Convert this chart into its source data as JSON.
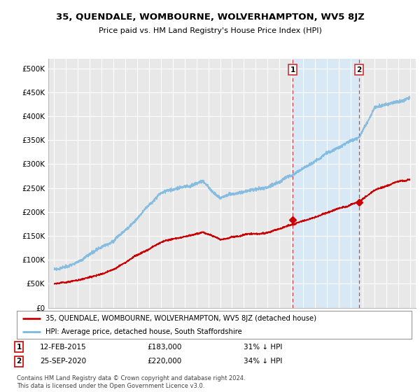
{
  "title": "35, QUENDALE, WOMBOURNE, WOLVERHAMPTON, WV5 8JZ",
  "subtitle": "Price paid vs. HM Land Registry's House Price Index (HPI)",
  "footer": "Contains HM Land Registry data © Crown copyright and database right 2024.\nThis data is licensed under the Open Government Licence v3.0.",
  "legend_line1": "35, QUENDALE, WOMBOURNE, WOLVERHAMPTON, WV5 8JZ (detached house)",
  "legend_line2": "HPI: Average price, detached house, South Staffordshire",
  "sale1_label": "1",
  "sale1_date": "12-FEB-2015",
  "sale1_price": "£183,000",
  "sale1_note": "31% ↓ HPI",
  "sale2_label": "2",
  "sale2_date": "25-SEP-2020",
  "sale2_price": "£220,000",
  "sale2_note": "34% ↓ HPI",
  "sale1_x": 2015.11,
  "sale1_y": 183000,
  "sale2_x": 2020.73,
  "sale2_y": 220000,
  "hpi_color": "#7ab8e0",
  "price_color": "#cc0000",
  "bg_color": "#ffffff",
  "plot_bg_color": "#e8e8e8",
  "highlight_bg": "#d8e8f5",
  "grid_color": "#ffffff",
  "ylim": [
    0,
    520000
  ],
  "xlim": [
    1994.5,
    2025.5
  ],
  "yticks": [
    0,
    50000,
    100000,
    150000,
    200000,
    250000,
    300000,
    350000,
    400000,
    450000,
    500000
  ],
  "ytick_labels": [
    "£0",
    "£50K",
    "£100K",
    "£150K",
    "£200K",
    "£250K",
    "£300K",
    "£350K",
    "£400K",
    "£450K",
    "£500K"
  ],
  "xticks": [
    1995,
    1996,
    1997,
    1998,
    1999,
    2000,
    2001,
    2002,
    2003,
    2004,
    2005,
    2006,
    2007,
    2008,
    2009,
    2010,
    2011,
    2012,
    2013,
    2014,
    2015,
    2016,
    2017,
    2018,
    2019,
    2020,
    2021,
    2022,
    2023,
    2024,
    2025
  ]
}
